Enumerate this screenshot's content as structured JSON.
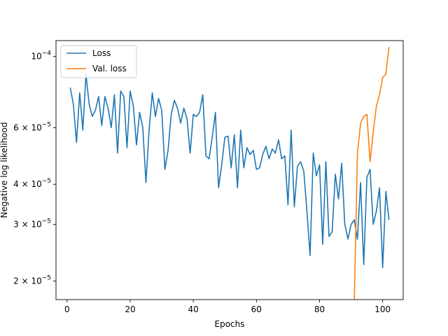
{
  "chart_data": {
    "type": "line",
    "title": "",
    "xlabel": "Epochs",
    "ylabel": "Negative log likelihood",
    "xlim": [
      -3.5,
      106.5
    ],
    "ylim": [
      1.75e-05,
      0.000112
    ],
    "yscale": "log",
    "grid": false,
    "legend_position": "top-left",
    "x_ticks": [
      0,
      20,
      40,
      60,
      80,
      100
    ],
    "x_tick_labels": [
      "0",
      "20",
      "40",
      "60",
      "80",
      "100"
    ],
    "y_ticks": [
      {
        "value": 2e-05,
        "mantissa": "2",
        "exp": "−5"
      },
      {
        "value": 3e-05,
        "mantissa": "3",
        "exp": "−5"
      },
      {
        "value": 4e-05,
        "mantissa": "4",
        "exp": "−5"
      },
      {
        "value": 6e-05,
        "mantissa": "6",
        "exp": "−5"
      },
      {
        "value": 0.0001,
        "mantissa": "",
        "exp": "−4"
      }
    ],
    "series": [
      {
        "name": "Loss",
        "color": "#1f77b4",
        "x": [
          1,
          2,
          3,
          4,
          5,
          6,
          7,
          8,
          9,
          10,
          11,
          12,
          13,
          14,
          15,
          16,
          17,
          18,
          19,
          20,
          21,
          22,
          23,
          24,
          25,
          26,
          27,
          28,
          29,
          30,
          31,
          32,
          33,
          34,
          35,
          36,
          37,
          38,
          39,
          40,
          41,
          42,
          43,
          44,
          45,
          46,
          47,
          48,
          49,
          50,
          51,
          52,
          53,
          54,
          55,
          56,
          57,
          58,
          59,
          60,
          61,
          62,
          63,
          64,
          65,
          66,
          67,
          68,
          69,
          70,
          71,
          72,
          73,
          74,
          75,
          76,
          77,
          78,
          79,
          80,
          81,
          82,
          83,
          84,
          85,
          86,
          87,
          88,
          89,
          90,
          91,
          92,
          93,
          94,
          95,
          96,
          97,
          98,
          99,
          100,
          101,
          102
        ],
        "values": [
          8e-05,
          7.1e-05,
          5.4e-05,
          7.7e-05,
          5.9e-05,
          8.8e-05,
          7.1e-05,
          6.5e-05,
          6.8e-05,
          7.5e-05,
          6.1e-05,
          7.5e-05,
          6.9e-05,
          6e-05,
          7.6e-05,
          5e-05,
          7.8e-05,
          7.5e-05,
          5.2e-05,
          7.8e-05,
          7e-05,
          5.3e-05,
          6.7e-05,
          6e-05,
          4.05e-05,
          5.9e-05,
          7.7e-05,
          6.5e-05,
          7.4e-05,
          6.8e-05,
          4.45e-05,
          5.1e-05,
          6.6e-05,
          7.3e-05,
          6.9e-05,
          6.2e-05,
          6.9e-05,
          6.4e-05,
          5e-05,
          6.6e-05,
          6.5e-05,
          6.7e-05,
          7.6e-05,
          4.9e-05,
          4.8e-05,
          5.6e-05,
          6.7e-05,
          3.9e-05,
          4.6e-05,
          5.6e-05,
          5.65e-05,
          4.5e-05,
          5.7e-05,
          3.9e-05,
          5.9e-05,
          4.5e-05,
          5.2e-05,
          4.95e-05,
          5.1e-05,
          4.45e-05,
          4.5e-05,
          4.95e-05,
          5.25e-05,
          4.8e-05,
          5.15e-05,
          5e-05,
          5.5e-05,
          4.8e-05,
          4.9e-05,
          3.45e-05,
          5.9e-05,
          3.4e-05,
          4.55e-05,
          4.7e-05,
          4.4e-05,
          3.3e-05,
          2.4e-05,
          5e-05,
          4.25e-05,
          4.6e-05,
          2.6e-05,
          4.7e-05,
          2.75e-05,
          2.85e-05,
          4.3e-05,
          3.6e-05,
          4.65e-05,
          3e-05,
          2.7e-05,
          3e-05,
          3.1e-05,
          2.7e-05,
          4.05e-05,
          2.25e-05,
          4.2e-05,
          4.45e-05,
          3e-05,
          3.3e-05,
          3.9e-05,
          2.2e-05,
          3.8e-05,
          3.1e-05
        ]
      },
      {
        "name": "Val. loss",
        "color": "#ff7f0e",
        "x": [
          91,
          92,
          93,
          94,
          95,
          96,
          97,
          98,
          99,
          100,
          101,
          102
        ],
        "values": [
          1.7e-05,
          5e-05,
          6.2e-05,
          6.5e-05,
          6.6e-05,
          4.7e-05,
          5.8e-05,
          7e-05,
          7.6e-05,
          8.6e-05,
          8.8e-05,
          0.000107
        ]
      }
    ]
  }
}
